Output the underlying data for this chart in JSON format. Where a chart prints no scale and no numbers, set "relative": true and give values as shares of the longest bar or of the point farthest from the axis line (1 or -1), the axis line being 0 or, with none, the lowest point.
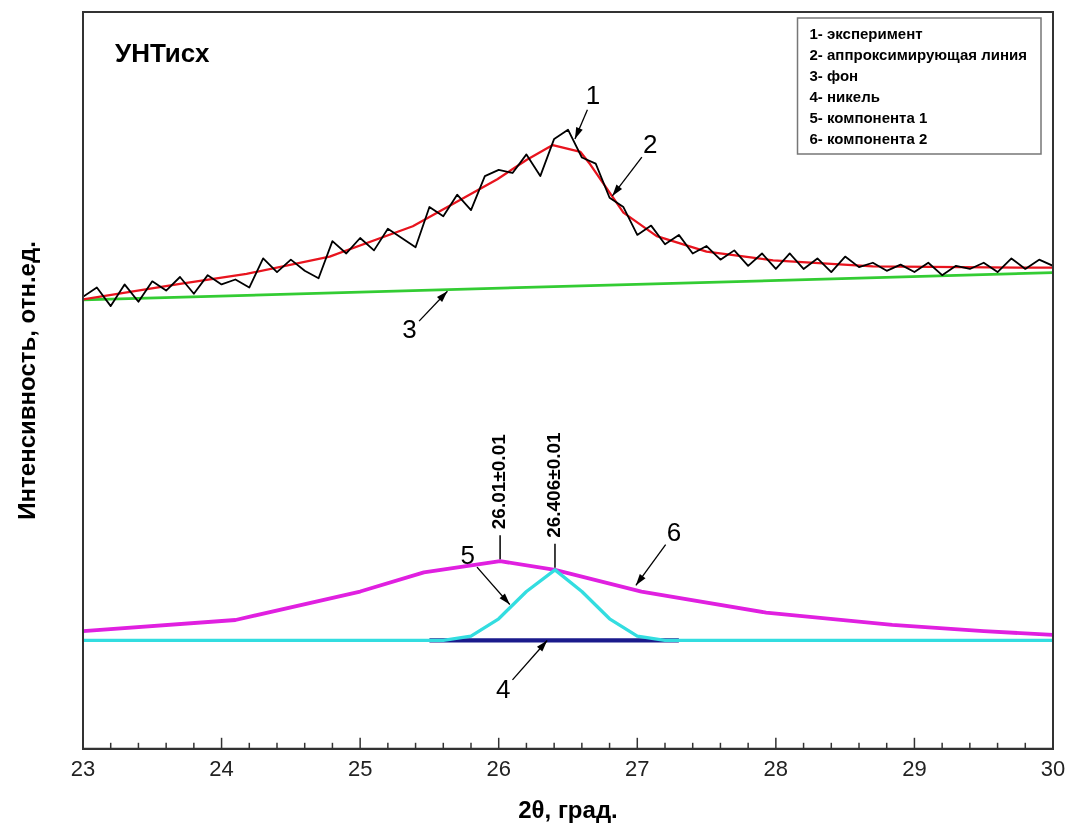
{
  "chart_data": {
    "type": "line",
    "title": "УНТисх",
    "xlabel": "2θ, град.",
    "ylabel": "Интенсивность, отн.ед.",
    "relative": true,
    "xlim": [
      23,
      30
    ],
    "xticks": [
      23,
      {
        "value": 23.2,
        "label": null
      },
      {
        "value": 23.4,
        "label": null
      },
      {
        "value": 23.6,
        "label": null
      },
      {
        "value": 23.8,
        "label": null
      },
      24,
      {
        "value": 24.2,
        "label": null
      },
      {
        "value": 24.4,
        "label": null
      },
      {
        "value": 24.6,
        "label": null
      },
      {
        "value": 24.8,
        "label": null
      },
      25,
      {
        "value": 25.2,
        "label": null
      },
      {
        "value": 25.4,
        "label": null
      },
      {
        "value": 25.6,
        "label": null
      },
      {
        "value": 25.8,
        "label": null
      },
      26,
      {
        "value": 26.2,
        "label": null
      },
      {
        "value": 26.4,
        "label": null
      },
      {
        "value": 26.6,
        "label": null
      },
      {
        "value": 26.8,
        "label": null
      },
      27,
      {
        "value": 27.2,
        "label": null
      },
      {
        "value": 27.4,
        "label": null
      },
      {
        "value": 27.6,
        "label": null
      },
      {
        "value": 27.8,
        "label": null
      },
      28,
      {
        "value": 28.2,
        "label": null
      },
      {
        "value": 28.4,
        "label": null
      },
      {
        "value": 28.6,
        "label": null
      },
      {
        "value": 28.8,
        "label": null
      },
      29,
      {
        "value": 29.2,
        "label": null
      },
      {
        "value": 29.4,
        "label": null
      },
      {
        "value": 29.6,
        "label": null
      },
      {
        "value": 29.8,
        "label": null
      },
      30
    ],
    "grid": false,
    "legend": false,
    "marker": "none",
    "line_style": "solid",
    "series": [
      {
        "color": "#000000",
        "x": [
          23,
          23.1,
          23.2,
          23.3,
          23.4,
          23.5,
          23.6,
          23.7,
          23.8,
          23.9,
          24,
          24.1,
          24.2,
          24.3,
          24.4,
          24.5,
          24.6,
          24.7,
          24.8,
          24.9,
          25,
          25.1,
          25.2,
          25.3,
          25.4,
          25.5,
          25.6,
          25.7,
          25.8,
          25.9,
          26,
          26.1,
          26.2,
          26.3,
          26.4,
          26.5,
          26.6,
          26.7,
          26.8,
          26.9,
          27,
          27.1,
          27.2,
          27.3,
          27.4,
          27.5,
          27.6,
          27.7,
          27.8,
          27.9,
          28,
          28.1,
          28.2,
          28.3,
          28.4,
          28.5,
          28.6,
          28.7,
          28.8,
          28.9,
          29,
          29.1,
          29.2,
          29.3,
          29.4,
          29.5,
          29.6,
          29.7,
          29.8,
          29.9,
          30
        ],
        "values": [
          0.73,
          0.745,
          0.715,
          0.75,
          0.722,
          0.755,
          0.74,
          0.762,
          0.735,
          0.765,
          0.75,
          0.758,
          0.745,
          0.792,
          0.77,
          0.79,
          0.772,
          0.76,
          0.82,
          0.8,
          0.825,
          0.805,
          0.84,
          0.825,
          0.81,
          0.875,
          0.86,
          0.895,
          0.87,
          0.925,
          0.935,
          0.93,
          0.96,
          0.925,
          0.985,
          1.0,
          0.955,
          0.945,
          0.89,
          0.875,
          0.83,
          0.845,
          0.815,
          0.83,
          0.8,
          0.812,
          0.79,
          0.805,
          0.78,
          0.8,
          0.775,
          0.8,
          0.775,
          0.792,
          0.77,
          0.795,
          0.778,
          0.785,
          0.772,
          0.782,
          0.77,
          0.785,
          0.765,
          0.78,
          0.775,
          0.785,
          0.77,
          0.792,
          0.775,
          0.79,
          0.78
        ]
      },
      {
        "color": "#e8141e",
        "x": [
          23,
          23.7,
          24.18,
          24.78,
          25.38,
          25.99,
          26.2,
          26.39,
          26.59,
          26.66,
          26.9,
          27.14,
          27.5,
          27.98,
          28.7,
          29.9,
          30
        ],
        "values": [
          0.726,
          0.751,
          0.767,
          0.795,
          0.844,
          0.92,
          0.951,
          0.975,
          0.964,
          0.944,
          0.866,
          0.828,
          0.803,
          0.789,
          0.779,
          0.777,
          0.777
        ]
      },
      {
        "color": "#33cc33",
        "x": [
          23,
          30
        ],
        "values": [
          0.725,
          0.769
        ]
      },
      {
        "color": "#33dde0",
        "x": [
          23,
          25.6,
          25.8,
          26,
          26.2,
          26.406,
          26.6,
          26.8,
          27,
          27.2,
          30
        ],
        "values": [
          0.175,
          0.175,
          0.182,
          0.21,
          0.254,
          0.289,
          0.254,
          0.21,
          0.182,
          0.175,
          0.175
        ]
      },
      {
        "color": "#e020e0",
        "x": [
          23,
          24.1,
          25,
          25.46,
          26.01,
          26.406,
          27.03,
          27.93,
          28.84,
          29.5,
          30
        ],
        "values": [
          0.19,
          0.208,
          0.254,
          0.285,
          0.303,
          0.289,
          0.254,
          0.22,
          0.2,
          0.19,
          0.184
        ]
      },
      {
        "color": "#1a1a8c",
        "x": [
          25.5,
          27.3
        ],
        "values": [
          0.175,
          0.175
        ]
      }
    ],
    "annotations": [
      "1- эксперимент",
      "2- аппроксимирующая линия",
      "3- фон",
      "4- никель",
      "5- компонента 1",
      "6- компонента 2",
      {
        "text": "1",
        "x": 26.55,
        "y": 0.985
      },
      {
        "text": "2",
        "x": 26.82,
        "y": 0.893
      },
      {
        "text": "3",
        "x": 25.63,
        "y": 0.739
      },
      {
        "text": "4",
        "x": 26.35,
        "y": 0.175
      },
      {
        "text": "5",
        "x": 26.08,
        "y": 0.233
      },
      {
        "text": "6",
        "x": 26.99,
        "y": 0.264
      },
      {
        "text": "26.01±0.01",
        "x": 26.01,
        "y": 0.303
      },
      {
        "text": "26.406±0.01",
        "x": 26.406,
        "y": 0.289
      }
    ]
  }
}
